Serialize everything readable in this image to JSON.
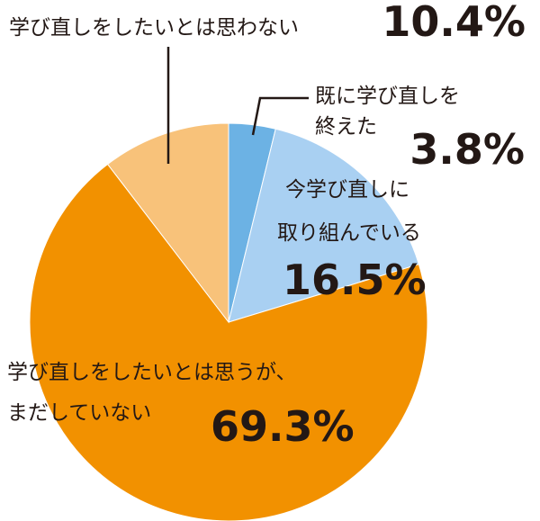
{
  "chart_data": {
    "type": "pie",
    "start_angle_deg": 0,
    "direction": "clockwise",
    "slices": [
      {
        "label_lines": [
          "既に学び直しを",
          "終えた"
        ],
        "value": 3.8,
        "value_text": "3.8%",
        "color": "#6cb2e4"
      },
      {
        "label_lines": [
          "今学び直しに",
          "取り組んでいる"
        ],
        "value": 16.5,
        "value_text": "16.5%",
        "color": "#a9d0f2"
      },
      {
        "label_lines": [
          "学び直しをしたいとは思うが、",
          "まだしていない"
        ],
        "value": 69.3,
        "value_text": "69.3%",
        "color": "#f29100"
      },
      {
        "label_lines": [
          "学び直しをしたいとは思わない"
        ],
        "value": 10.4,
        "value_text": "10.4%",
        "color": "#f8c27a"
      }
    ],
    "leader_line_color": "#231815",
    "text_color": "#231815"
  }
}
